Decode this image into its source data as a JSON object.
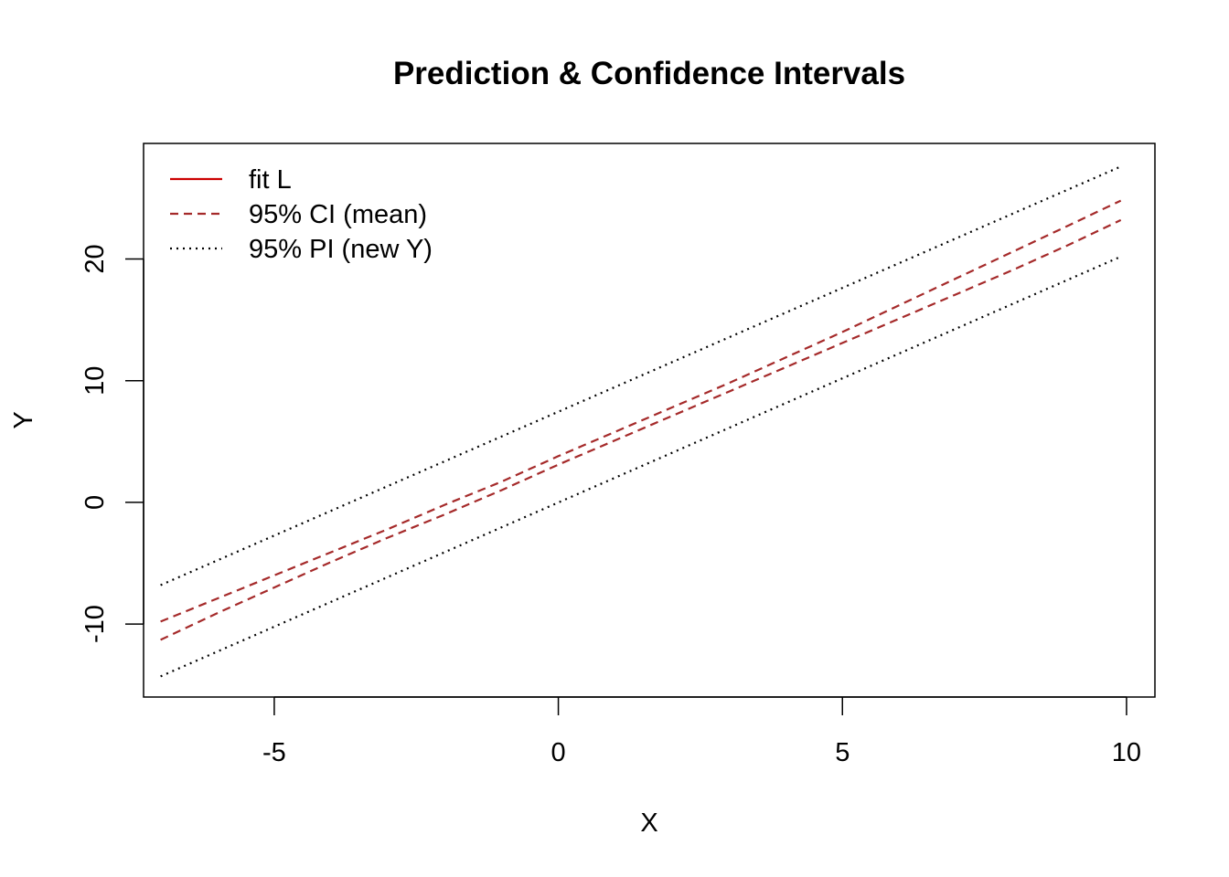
{
  "chart_data": {
    "type": "line",
    "title": "Prediction & Confidence Intervals",
    "xlabel": "X",
    "ylabel": "Y",
    "xlim": [
      -7.3,
      10.5
    ],
    "ylim": [
      -16,
      29.5
    ],
    "x_ticks": [
      -5,
      0,
      5,
      10
    ],
    "y_ticks": [
      -10,
      0,
      10,
      20
    ],
    "x_tick_labels": [
      "-5",
      "0",
      "5",
      "10"
    ],
    "y_tick_labels": [
      "-10",
      "0",
      "10",
      "20"
    ],
    "grid": false,
    "legend_position": "top-left",
    "legend": [
      {
        "label": "fit L",
        "color": "#cc0000",
        "style": "solid"
      },
      {
        "label": "95% CI (mean)",
        "color": "#a52a2a",
        "style": "dashed"
      },
      {
        "label": "95% PI (new Y)",
        "color": "#000000",
        "style": "dotted"
      }
    ],
    "series": [
      {
        "role": "ci-upper",
        "color": "#a52a2a",
        "style": "dashed",
        "x": [
          -7.0,
          -6.0,
          -5.0,
          -4.0,
          -3.0,
          -2.0,
          -1.0,
          0.0,
          1.0,
          2.0,
          3.0,
          4.0,
          5.0,
          6.0,
          7.0,
          8.0,
          9.0,
          9.9
        ],
        "y": [
          -9.8,
          -7.9,
          -6.0,
          -4.1,
          -2.2,
          -0.2,
          1.7,
          3.8,
          5.8,
          7.8,
          9.8,
          11.9,
          14.0,
          16.2,
          18.4,
          20.6,
          22.8,
          24.8
        ]
      },
      {
        "role": "ci-lower",
        "color": "#a52a2a",
        "style": "dashed",
        "x": [
          -7.0,
          -6.0,
          -5.0,
          -4.0,
          -3.0,
          -2.0,
          -1.0,
          0.0,
          1.0,
          2.0,
          3.0,
          4.0,
          5.0,
          6.0,
          7.0,
          8.0,
          9.0,
          9.9
        ],
        "y": [
          -11.3,
          -9.1,
          -7.0,
          -4.9,
          -2.9,
          -1.0,
          1.0,
          3.1,
          5.1,
          7.1,
          9.1,
          11.1,
          13.1,
          15.1,
          17.1,
          19.1,
          21.2,
          23.2
        ]
      },
      {
        "role": "pi-upper",
        "color": "#000000",
        "style": "dotted",
        "x": [
          -7.0,
          9.9
        ],
        "y": [
          -6.8,
          27.6
        ]
      },
      {
        "role": "pi-lower",
        "color": "#000000",
        "style": "dotted",
        "x": [
          -7.0,
          9.9
        ],
        "y": [
          -14.3,
          20.2
        ]
      }
    ]
  }
}
